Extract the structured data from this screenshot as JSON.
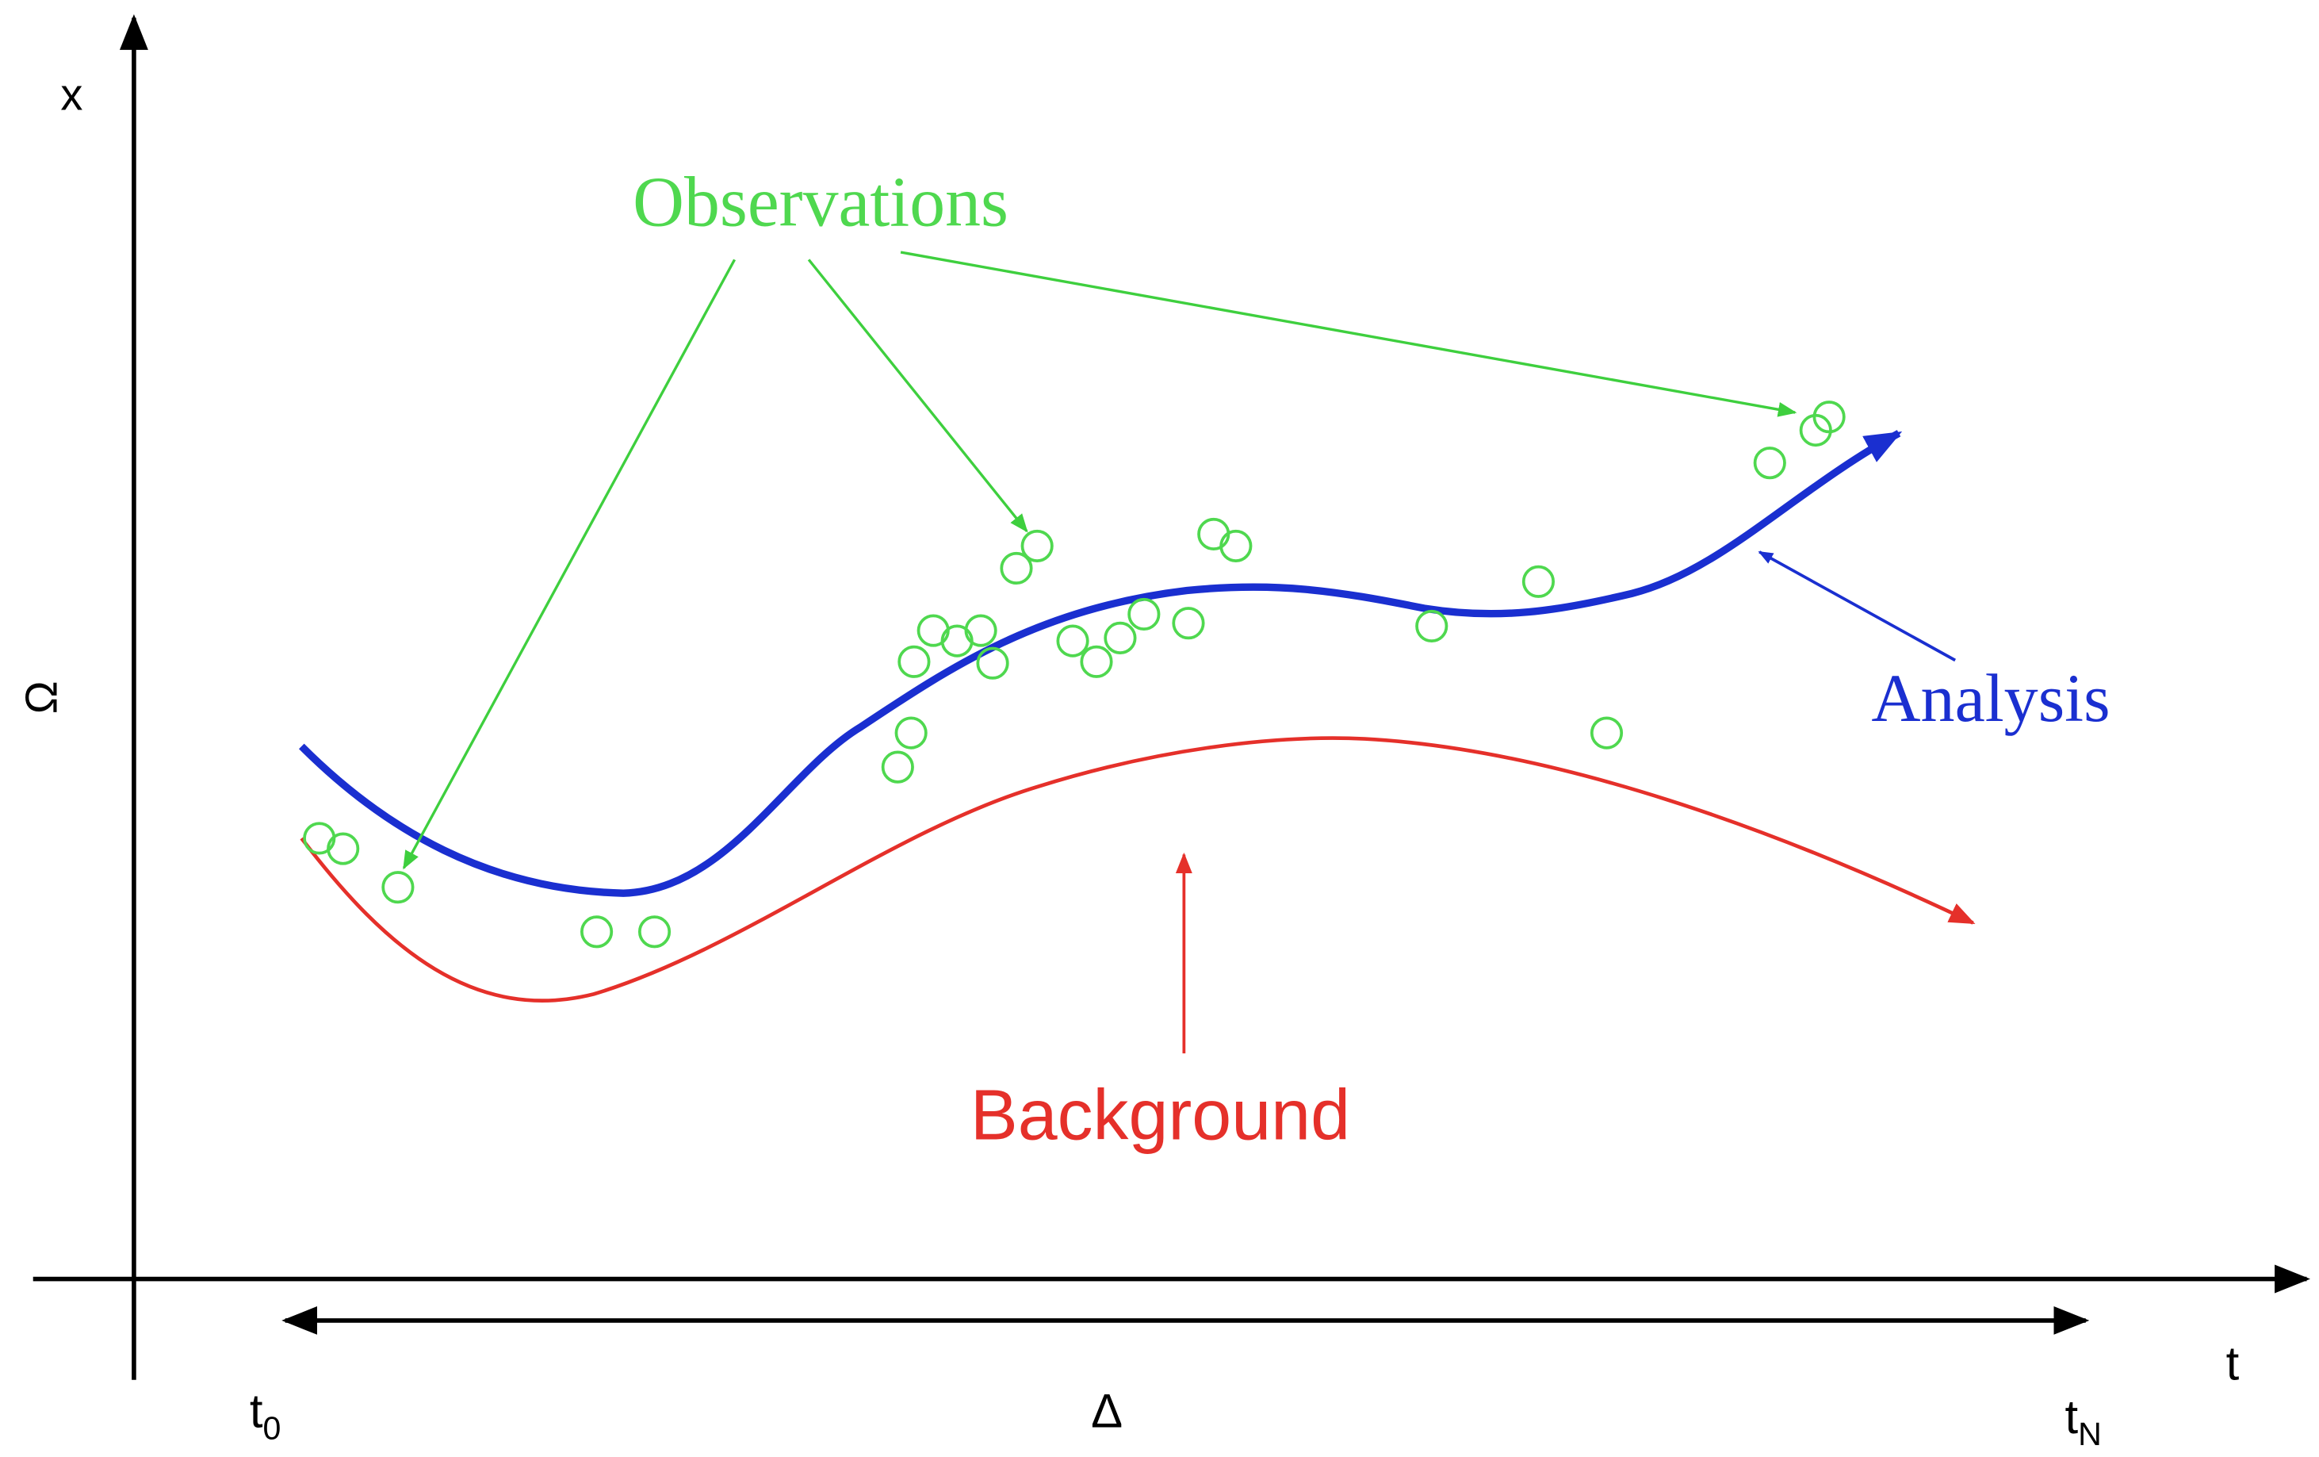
{
  "axes": {
    "y_top": "x",
    "y_side": "Ω",
    "x_end": "t"
  },
  "interval": {
    "start": {
      "base": "t",
      "sub": "0"
    },
    "label": "Δ",
    "end": {
      "base": "t",
      "sub": "N"
    }
  },
  "labels": {
    "observations": "Observations",
    "analysis": "Analysis",
    "background": "Background"
  }
}
